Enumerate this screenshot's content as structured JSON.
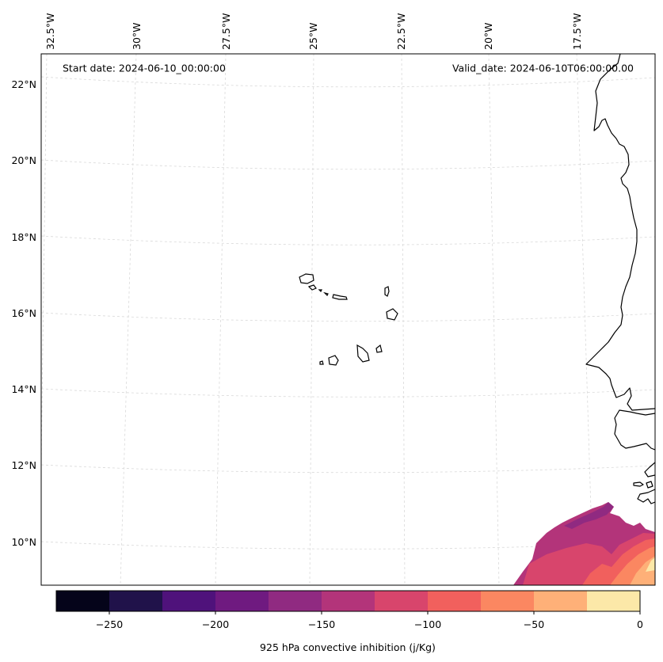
{
  "map": {
    "title_left": "Start date: 2024-06-10_00:00:00",
    "title_right": "Valid_date: 2024-06-10T06:00:00.00",
    "lon_labels": [
      "32.5°W",
      "30°W",
      "27.5°W",
      "25°W",
      "22.5°W",
      "20°W",
      "17.5°W"
    ],
    "lat_labels": [
      "22°N",
      "20°N",
      "18°N",
      "16°N",
      "14°N",
      "12°N",
      "10°N"
    ]
  },
  "colorbar": {
    "label": "925 hPa convective inhibition (j/Kg)",
    "tick_labels": [
      "−250",
      "−200",
      "−150",
      "−100",
      "−50",
      "0"
    ],
    "colors": [
      "#05041a",
      "#20124a",
      "#4f127b",
      "#6f1a80",
      "#902a81",
      "#b3347a",
      "#d8456c",
      "#f1605d",
      "#fb8761",
      "#feb078",
      "#fce8a8"
    ],
    "levels": [
      -275,
      -250,
      -225,
      -200,
      -175,
      -150,
      -125,
      -100,
      -75,
      -50,
      -25,
      0
    ]
  },
  "chart_data": {
    "type": "heatmap",
    "title": "",
    "variable": "925 hPa convective inhibition (j/Kg)",
    "start_date": "2024-06-10_00:00:00",
    "valid_date": "2024-06-10T06:00:00.00",
    "lon_ticks": [
      -32.5,
      -30,
      -27.5,
      -25,
      -22.5,
      -20,
      -17.5
    ],
    "lat_ticks": [
      22,
      20,
      18,
      16,
      14,
      12,
      10
    ],
    "colorbar_range": [
      -275,
      0
    ],
    "colorbar_ticks": [
      -250,
      -200,
      -150,
      -100,
      -50,
      0
    ],
    "observed_value_range": [
      -175,
      0
    ],
    "region": "Cabo Verde islands and West African coast"
  }
}
